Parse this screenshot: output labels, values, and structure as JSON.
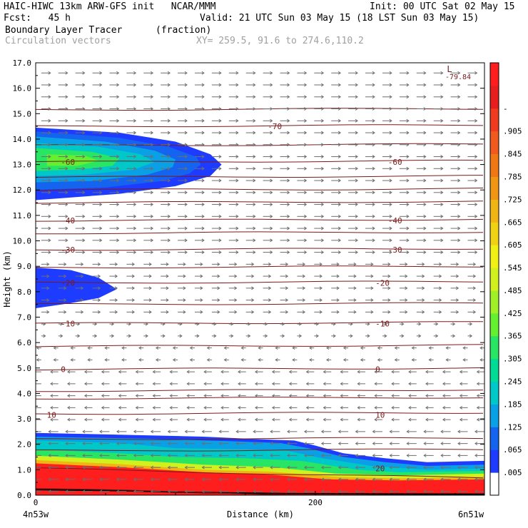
{
  "header": {
    "line1_left": "HAIC-HIWC 13km ARW-GFS init   NCAR/MMM",
    "line1_right": "Init: 00 UTC Sat 02 May 15",
    "fcst": "Fcst:   45 h",
    "valid": "Valid: 21 UTC Sun 03 May 15 (18 LST Sun 03 May 15)",
    "field1": "Boundary Layer Tracer",
    "field1_units": "(fraction)",
    "field2": "Circulation vectors",
    "xy": "XY= 259.5, 91.6 to 274.6,110.2"
  },
  "chart_data": {
    "type": "area",
    "xlabel": "Distance (km)",
    "ylabel": "Height (km)",
    "xlim": [
      0,
      321
    ],
    "ylim": [
      0,
      17
    ],
    "x_ticks": [
      {
        "value": 0,
        "label": "0"
      },
      {
        "value": 200,
        "label": "200"
      }
    ],
    "x_end_labels": {
      "left": "4n53w",
      "right": "6n51w"
    },
    "y_ticks": [
      "0.0",
      "1.0",
      "2.0",
      "3.0",
      "4.0",
      "5.0",
      "6.0",
      "7.0",
      "8.0",
      "9.0",
      "10.0",
      "11.0",
      "12.0",
      "13.0",
      "14.0",
      "15.0",
      "16.0",
      "17.0"
    ],
    "colorbar": {
      "labels": [
        ".005",
        ".065",
        ".125",
        ".185",
        ".245",
        ".305",
        ".365",
        ".425",
        ".485",
        ".545",
        ".605",
        ".665",
        ".725",
        ".785",
        ".845",
        ".905",
        "-"
      ],
      "colors": [
        "#ffffff",
        "#1e3cff",
        "#1464f0",
        "#0aa0e6",
        "#00c8c8",
        "#00dc96",
        "#28e664",
        "#64f030",
        "#a0f028",
        "#d2f01e",
        "#f0f014",
        "#f0d214",
        "#f0b414",
        "#f09614",
        "#f07814",
        "#f05a1e",
        "#f03c1e",
        "#e61e1e",
        "#ff1e1e"
      ]
    },
    "isotherm_labels": [
      {
        "text": "-70",
        "x": 166,
        "y": 14.5
      },
      {
        "text": "-60",
        "x": 18,
        "y": 13.1
      },
      {
        "text": "-60",
        "x": 252,
        "y": 13.1
      },
      {
        "text": "-40",
        "x": 18,
        "y": 10.8
      },
      {
        "text": "-40",
        "x": 252,
        "y": 10.8
      },
      {
        "text": "-30",
        "x": 18,
        "y": 9.65
      },
      {
        "text": "-30",
        "x": 252,
        "y": 9.65
      },
      {
        "text": "-20",
        "x": 18,
        "y": 8.35
      },
      {
        "text": "-20",
        "x": 243,
        "y": 8.35
      },
      {
        "text": "-10",
        "x": 18,
        "y": 6.75
      },
      {
        "text": "-10",
        "x": 243,
        "y": 6.75
      },
      {
        "text": "0",
        "x": 18,
        "y": 4.95
      },
      {
        "text": "0",
        "x": 243,
        "y": 4.95
      },
      {
        "text": "10",
        "x": 8,
        "y": 3.15
      },
      {
        "text": "10",
        "x": 243,
        "y": 3.15
      },
      {
        "text": "20",
        "x": 243,
        "y": 1.05
      }
    ],
    "min_label": {
      "letter": "L",
      "value": "-79.84"
    }
  }
}
